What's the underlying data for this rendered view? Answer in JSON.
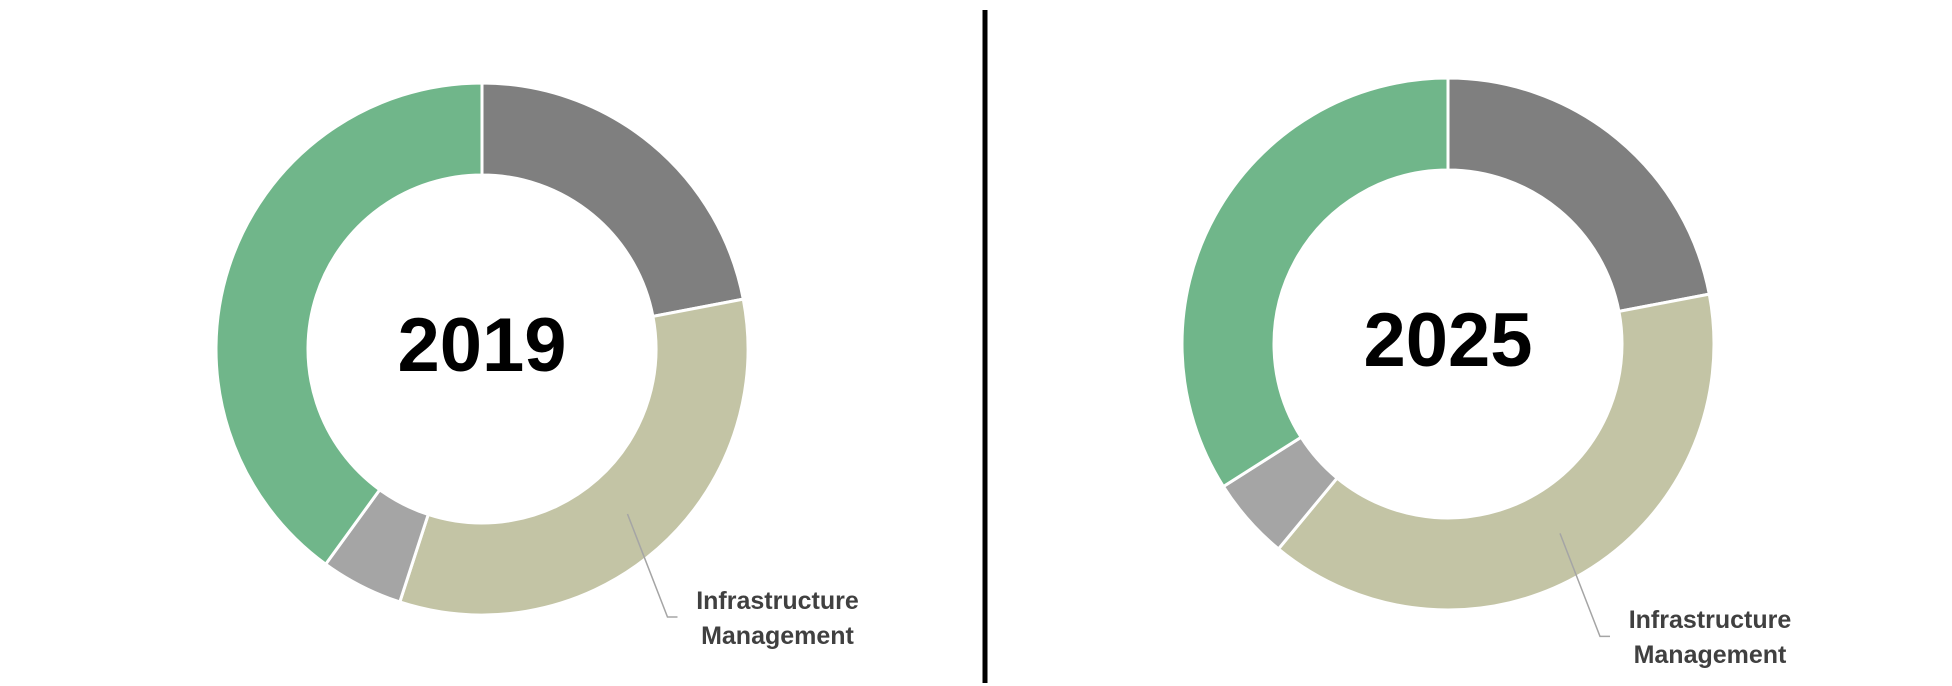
{
  "chart_data": [
    {
      "type": "donut",
      "title": "2019",
      "categories": [
        null,
        "Infrastructure Management",
        null,
        null
      ],
      "values": [
        22,
        33,
        5,
        40
      ],
      "colors": [
        "#7f7f7f",
        "#c3c4a5",
        "#a5a5a5",
        "#70b68a"
      ]
    },
    {
      "type": "donut",
      "title": "2025",
      "categories": [
        null,
        "Infrastructure Management",
        null,
        null
      ],
      "values": [
        22,
        39,
        5,
        34
      ],
      "colors": [
        "#7f7f7f",
        "#c3c4a5",
        "#a5a5a5",
        "#70b68a"
      ]
    }
  ]
}
